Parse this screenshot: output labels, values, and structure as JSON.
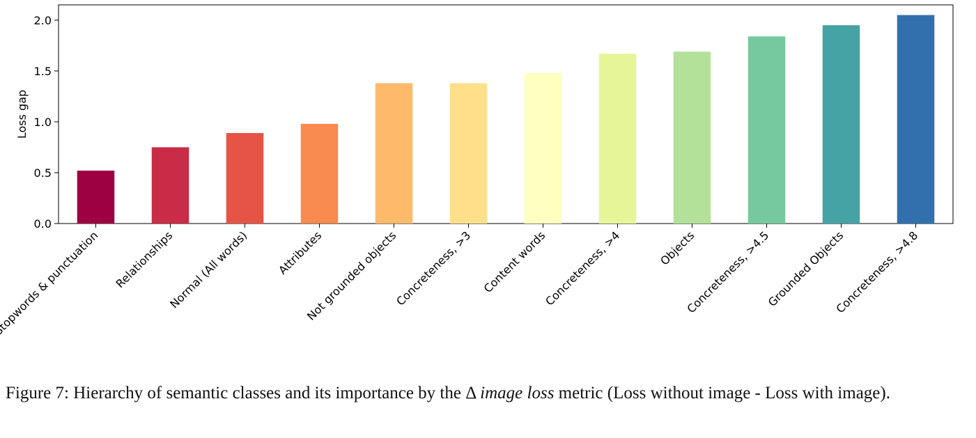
{
  "chart_data": {
    "type": "bar",
    "title": "",
    "xlabel": "",
    "ylabel": "Loss gap",
    "ylim": [
      0,
      2.15
    ],
    "yticks": [
      "0.0",
      "0.5",
      "1.0",
      "1.5",
      "2.0"
    ],
    "grid": false,
    "categories": [
      "Stopwords & punctuation",
      "Relationships",
      "Normal (All words)",
      "Attributes",
      "Not grounded objects",
      "Concreteness, >3",
      "Content words",
      "Concreteness, >4",
      "Objects",
      "Concreteness, >4.5",
      "Grounded Objects",
      "Concreteness, >4.8"
    ],
    "values": [
      0.52,
      0.75,
      0.89,
      0.98,
      1.38,
      1.38,
      1.48,
      1.67,
      1.69,
      1.84,
      1.95,
      2.05
    ],
    "colors": [
      "#9e0142",
      "#c92c46",
      "#e65446",
      "#f98a50",
      "#fdba6b",
      "#fee08b",
      "#ffffbf",
      "#e6f598",
      "#b3e19a",
      "#76c99e",
      "#45a3a5",
      "#3270ad"
    ]
  },
  "caption": {
    "prefix": "Figure 7: Hierarchy of semantic classes and its importance by the ",
    "delta": "Δ",
    "metric": "image loss",
    "suffix": " metric (Loss without image - Loss with image)."
  }
}
